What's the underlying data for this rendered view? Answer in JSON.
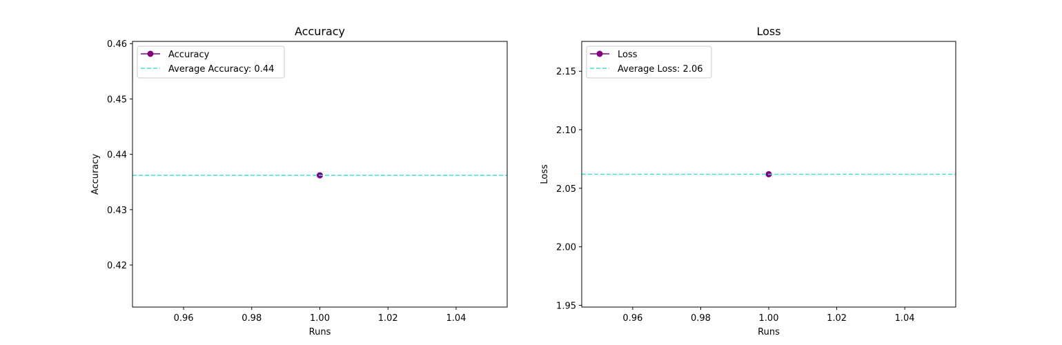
{
  "chart_data": [
    {
      "type": "line",
      "title": "Accuracy",
      "xlabel": "Runs",
      "ylabel": "Accuracy",
      "xlim": [
        0.945,
        1.055
      ],
      "ylim": [
        0.4124,
        0.4604
      ],
      "x_ticks": [
        "0.96",
        "0.98",
        "1.00",
        "1.02",
        "1.04"
      ],
      "y_ticks": [
        "0.42",
        "0.43",
        "0.44",
        "0.45",
        "0.46"
      ],
      "grid": false,
      "legend_position": "top-left",
      "series": [
        {
          "name": "Accuracy",
          "x": [
            1.0
          ],
          "y": [
            0.4362
          ],
          "color": "#800080",
          "style": "solid",
          "marker": "circle"
        },
        {
          "name": "Average Accuracy: 0.44",
          "y_constant": 0.4362,
          "color": "#40e0d0",
          "style": "dashed",
          "marker": "none"
        }
      ]
    },
    {
      "type": "line",
      "title": "Loss",
      "xlabel": "Runs",
      "ylabel": "Loss",
      "xlim": [
        0.945,
        1.055
      ],
      "ylim": [
        1.9485,
        2.1755
      ],
      "x_ticks": [
        "0.96",
        "0.98",
        "1.00",
        "1.02",
        "1.04"
      ],
      "y_ticks": [
        "1.95",
        "2.00",
        "2.05",
        "2.10",
        "2.15"
      ],
      "grid": false,
      "legend_position": "top-left",
      "series": [
        {
          "name": "Loss",
          "x": [
            1.0
          ],
          "y": [
            2.062
          ],
          "color": "#800080",
          "style": "solid",
          "marker": "circle"
        },
        {
          "name": "Average Loss: 2.06",
          "y_constant": 2.062,
          "color": "#40e0d0",
          "style": "dashed",
          "marker": "none"
        }
      ]
    }
  ]
}
